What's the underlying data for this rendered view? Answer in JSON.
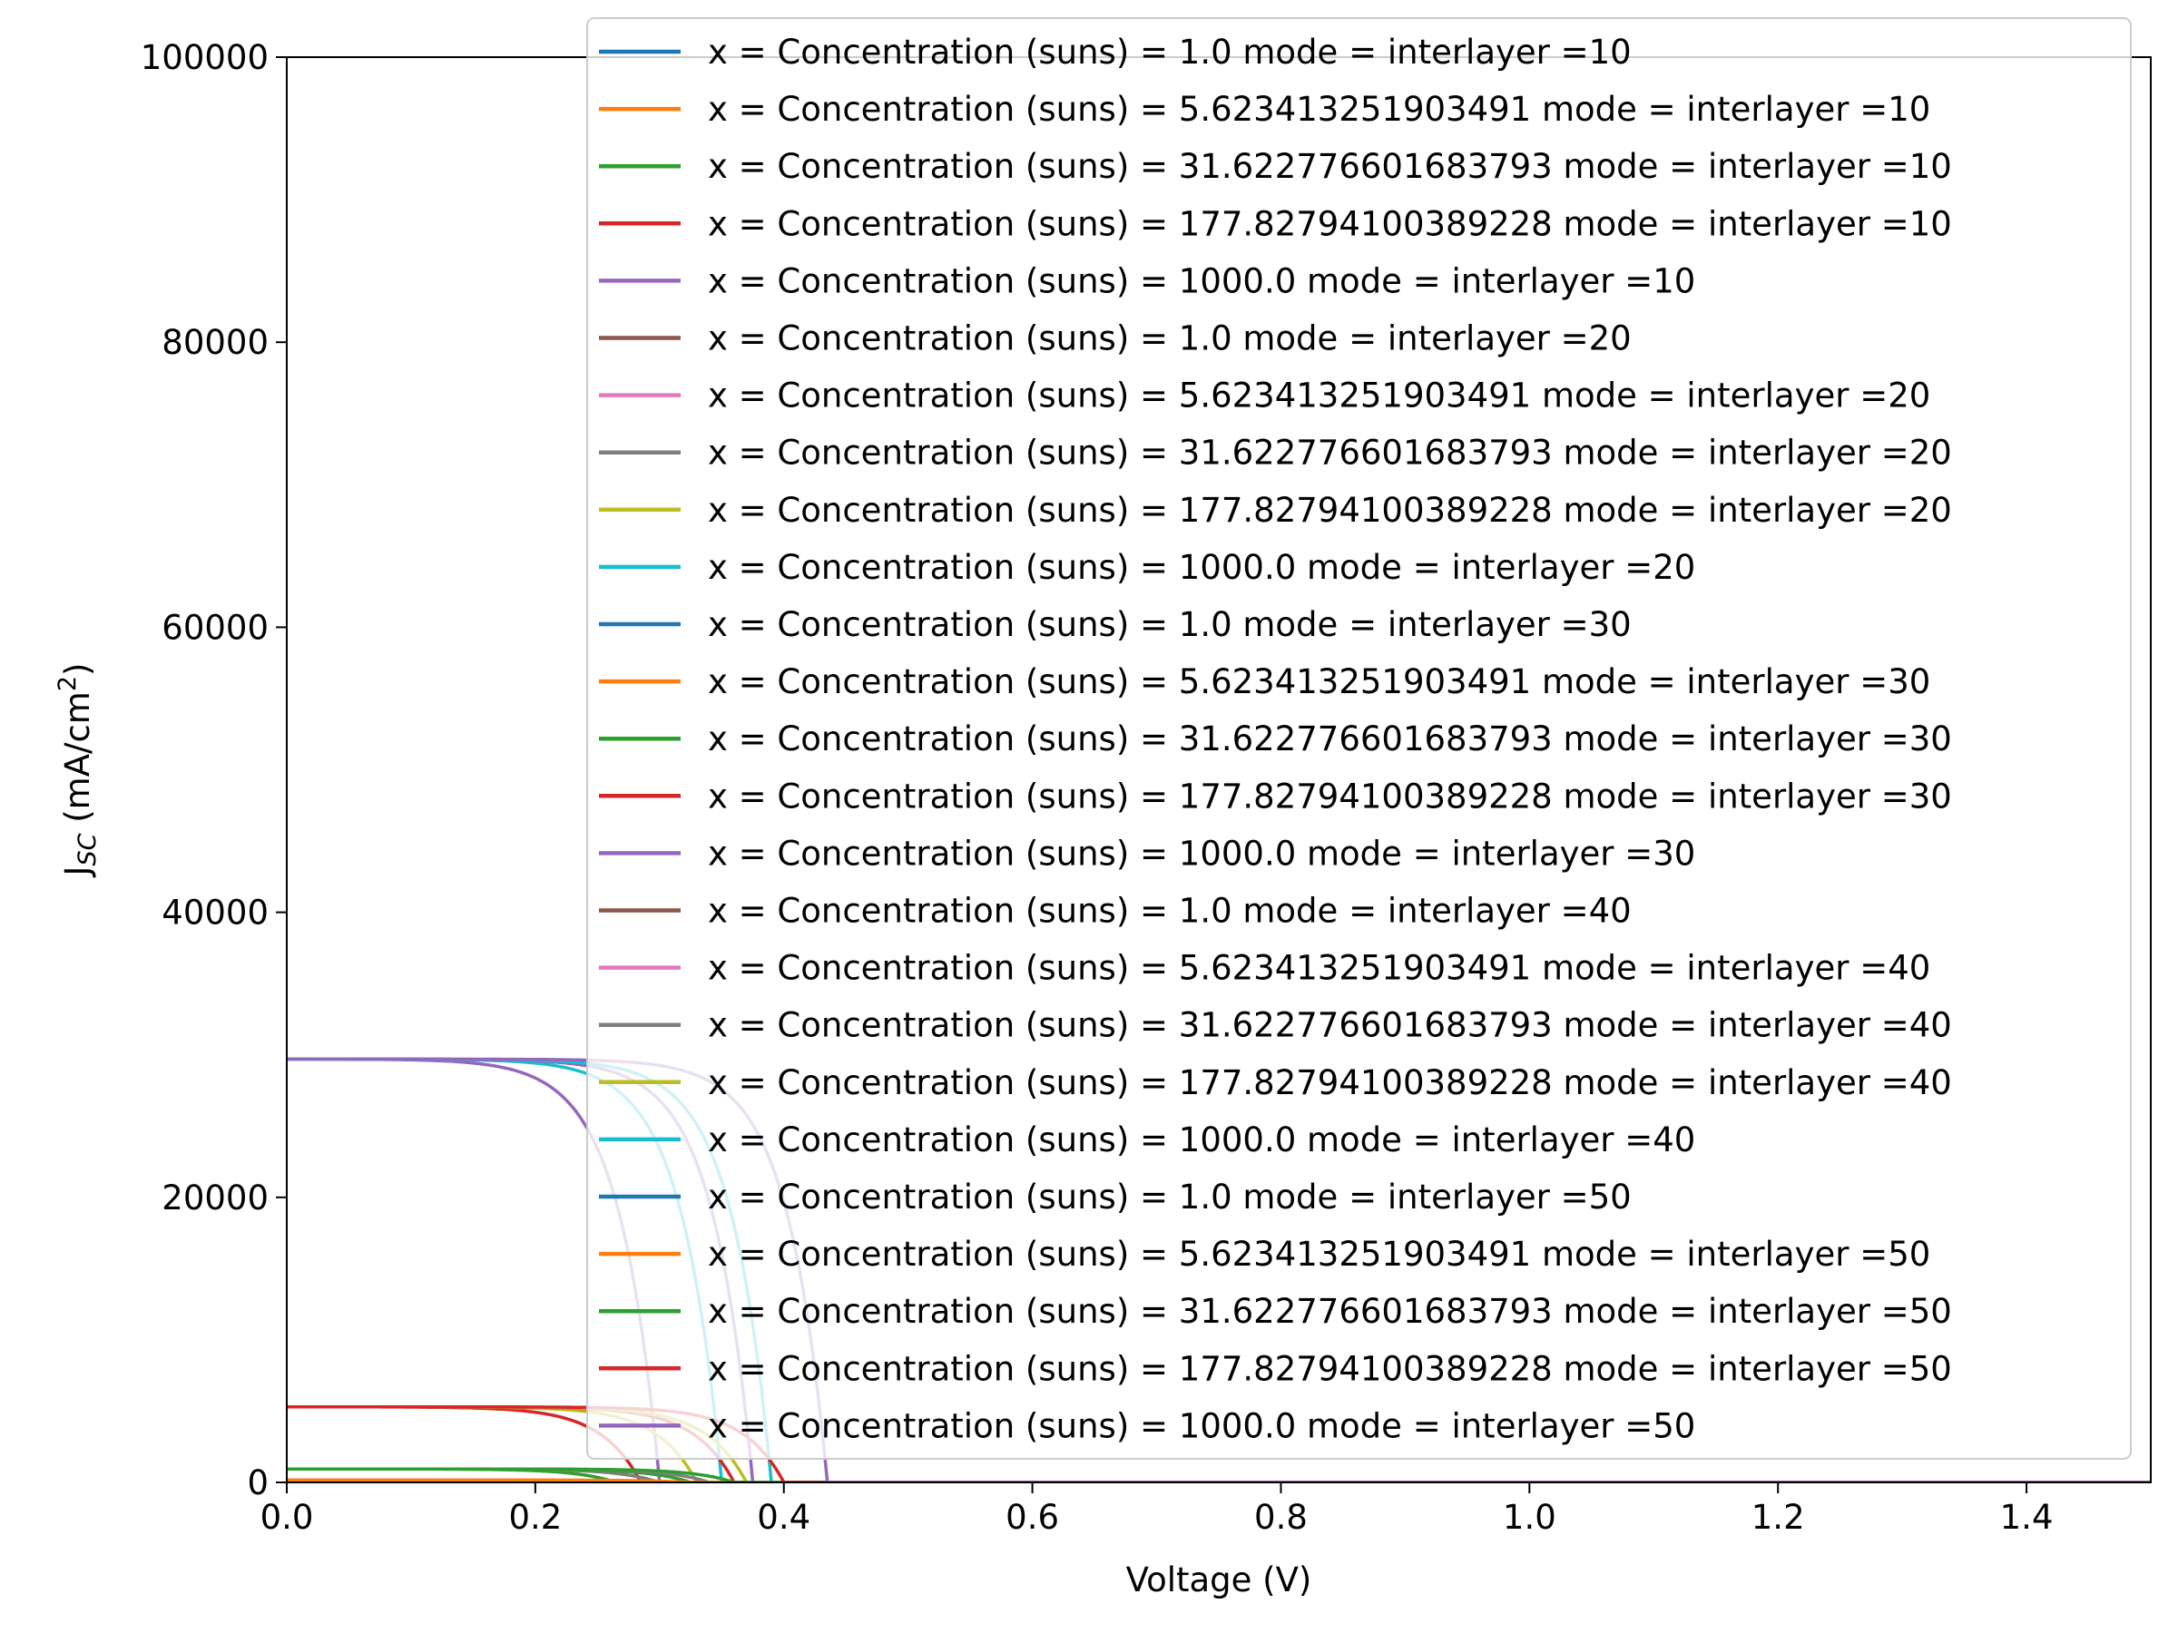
{
  "chart_data": {
    "type": "line",
    "xlabel": "Voltage (V)",
    "ylabel": {
      "main": "J",
      "sub": "SC",
      "units_pre": " (mA/cm",
      "units_sup": "2",
      "units_post": ")"
    },
    "xlim": [
      0,
      1.5
    ],
    "ylim": [
      0,
      100000
    ],
    "xticks": [
      0.0,
      0.2,
      0.4,
      0.6,
      0.8,
      1.0,
      1.2,
      1.4
    ],
    "xtick_labels": [
      "0.0",
      "0.2",
      "0.4",
      "0.6",
      "0.8",
      "1.0",
      "1.2",
      "1.4"
    ],
    "yticks": [
      0,
      20000,
      40000,
      60000,
      80000,
      100000
    ],
    "ytick_labels": [
      "0",
      "20000",
      "40000",
      "60000",
      "80000",
      "100000"
    ],
    "legend_position": "top-right",
    "legend_alpha": 0.8,
    "concentrations": [
      "1.0",
      "5.623413251903491",
      "31.622776601683793",
      "177.82794100389228",
      "1000.0"
    ],
    "interlayers": [
      10,
      20,
      30,
      40,
      50
    ],
    "isc_by_concentration": [
      30,
      168,
      945,
      5300,
      29700
    ],
    "voc_by_interlayer": [
      [
        0.22,
        0.245,
        0.265,
        0.285,
        0.3
      ],
      [
        0.245,
        0.27,
        0.3,
        0.33,
        0.35
      ],
      [
        0.26,
        0.29,
        0.325,
        0.36,
        0.375
      ],
      [
        0.275,
        0.31,
        0.34,
        0.37,
        0.39
      ],
      [
        0.29,
        0.325,
        0.36,
        0.4,
        0.435
      ]
    ],
    "series": [
      {
        "name": "x = Concentration (suns) = 1.0 mode = interlayer =10",
        "color": "#1f77b4"
      },
      {
        "name": "x = Concentration (suns) = 5.623413251903491 mode = interlayer =10",
        "color": "#ff7f0e"
      },
      {
        "name": "x = Concentration (suns) = 31.622776601683793 mode = interlayer =10",
        "color": "#2ca02c"
      },
      {
        "name": "x = Concentration (suns) = 177.82794100389228 mode = interlayer =10",
        "color": "#d62728"
      },
      {
        "name": "x = Concentration (suns) = 1000.0 mode = interlayer =10",
        "color": "#9467bd"
      },
      {
        "name": "x = Concentration (suns) = 1.0 mode = interlayer =20",
        "color": "#8c564b"
      },
      {
        "name": "x = Concentration (suns) = 5.623413251903491 mode = interlayer =20",
        "color": "#e377c2"
      },
      {
        "name": "x = Concentration (suns) = 31.622776601683793 mode = interlayer =20",
        "color": "#7f7f7f"
      },
      {
        "name": "x = Concentration (suns) = 177.82794100389228 mode = interlayer =20",
        "color": "#bcbd22"
      },
      {
        "name": "x = Concentration (suns) = 1000.0 mode = interlayer =20",
        "color": "#17becf"
      },
      {
        "name": "x = Concentration (suns) = 1.0 mode = interlayer =30",
        "color": "#1f77b4"
      },
      {
        "name": "x = Concentration (suns) = 5.623413251903491 mode = interlayer =30",
        "color": "#ff7f0e"
      },
      {
        "name": "x = Concentration (suns) = 31.622776601683793 mode = interlayer =30",
        "color": "#2ca02c"
      },
      {
        "name": "x = Concentration (suns) = 177.82794100389228 mode = interlayer =30",
        "color": "#d62728"
      },
      {
        "name": "x = Concentration (suns) = 1000.0 mode = interlayer =30",
        "color": "#9467bd"
      },
      {
        "name": "x = Concentration (suns) = 1.0 mode = interlayer =40",
        "color": "#8c564b"
      },
      {
        "name": "x = Concentration (suns) = 5.623413251903491 mode = interlayer =40",
        "color": "#e377c2"
      },
      {
        "name": "x = Concentration (suns) = 31.622776601683793 mode = interlayer =40",
        "color": "#7f7f7f"
      },
      {
        "name": "x = Concentration (suns) = 177.82794100389228 mode = interlayer =40",
        "color": "#bcbd22"
      },
      {
        "name": "x = Concentration (suns) = 1000.0 mode = interlayer =40",
        "color": "#17becf"
      },
      {
        "name": "x = Concentration (suns) = 1.0 mode = interlayer =50",
        "color": "#1f77b4"
      },
      {
        "name": "x = Concentration (suns) = 5.623413251903491 mode = interlayer =50",
        "color": "#ff7f0e"
      },
      {
        "name": "x = Concentration (suns) = 31.622776601683793 mode = interlayer =50",
        "color": "#2ca02c"
      },
      {
        "name": "x = Concentration (suns) = 177.82794100389228 mode = interlayer =50",
        "color": "#d62728"
      },
      {
        "name": "x = Concentration (suns) = 1000.0 mode = interlayer =50",
        "color": "#9467bd"
      }
    ]
  }
}
